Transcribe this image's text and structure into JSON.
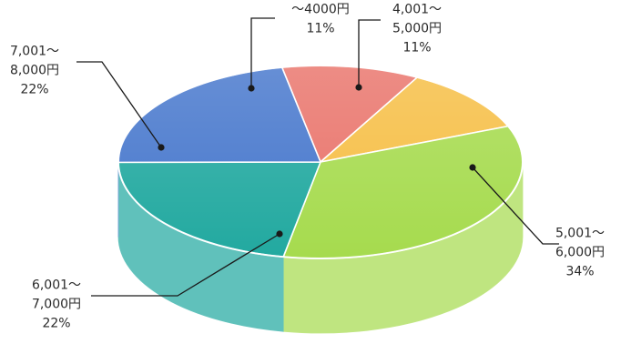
{
  "chart_data": {
    "type": "pie",
    "title": "",
    "slices": [
      {
        "label": "〜4000円",
        "value": 11,
        "value_label": "11%",
        "color": "#E9736A"
      },
      {
        "label": "4,001〜\n5,000円",
        "value": 11,
        "value_label": "11%",
        "color": "#F6BE44"
      },
      {
        "label": "5,001〜\n6,000円",
        "value": 34,
        "value_label": "34%",
        "color": "#A6DB4E"
      },
      {
        "label": "6,001〜\n7,000円",
        "value": 22,
        "value_label": "22%",
        "color": "#22A9A0"
      },
      {
        "label": "7,001〜\n8,000円",
        "value": 22,
        "value_label": "22%",
        "color": "#4576CC"
      }
    ],
    "legend": "none",
    "style": "3d"
  }
}
